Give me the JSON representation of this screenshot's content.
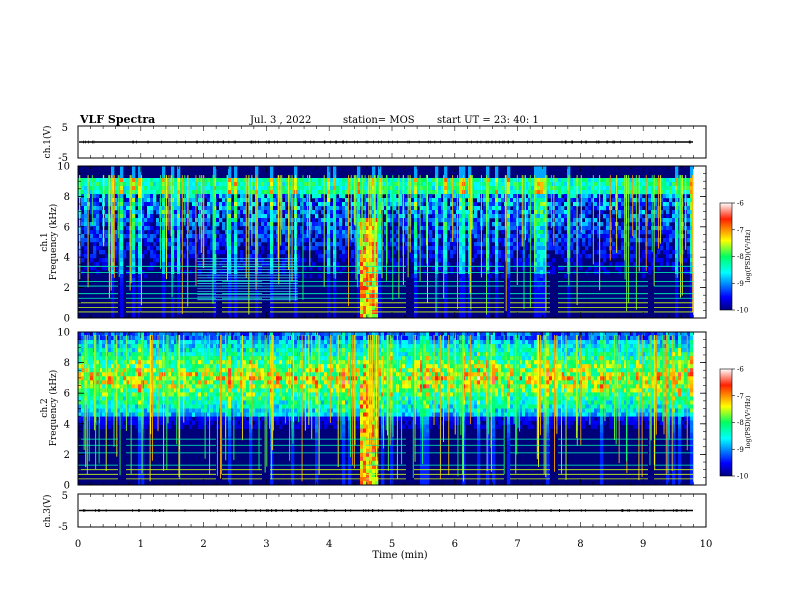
{
  "header": {
    "title": "VLF Spectra",
    "date": "Jul. 3 , 2022",
    "station": "station= MOS",
    "start_ut": "start UT =  23: 40: 1"
  },
  "chart_data": [
    {
      "type": "line",
      "name": "ch1-waveform",
      "ylabel": "ch.1(V)",
      "ylim": [
        -5,
        5
      ],
      "y_ticks": [
        "5",
        "-5"
      ],
      "x_range": [
        0,
        10
      ],
      "level": 0
    },
    {
      "type": "heatmap",
      "name": "ch1-spectrogram",
      "ylabel": "ch.1\nFrequency (kHz)",
      "xlim": [
        0,
        10
      ],
      "ylim": [
        0,
        10
      ],
      "y_ticks": [
        "0",
        "2",
        "4",
        "6",
        "8",
        "10"
      ],
      "colorbar": {
        "range": [
          -10,
          -6
        ],
        "ticks": [
          "-6",
          "-7",
          "-8",
          "-9",
          "-10"
        ],
        "label": "log(PSD)(V²/Hz)"
      },
      "features": {
        "upper_band_khz": [
          8.5,
          9.0
        ],
        "narrowband_lines_khz": [
          0.4,
          0.7,
          1.0,
          1.3,
          1.6,
          2.1,
          2.4,
          3.0,
          3.4
        ],
        "dense_line_interval_min": [
          1.9,
          3.5
        ],
        "strong_burst_min": [
          4.5,
          4.8
        ]
      }
    },
    {
      "type": "heatmap",
      "name": "ch2-spectrogram",
      "ylabel": "ch.2\nFrequency (kHz)",
      "xlim": [
        0,
        10
      ],
      "ylim": [
        0,
        10
      ],
      "y_ticks": [
        "0",
        "2",
        "4",
        "6",
        "8",
        "10"
      ],
      "colorbar": {
        "range": [
          -10,
          -6
        ],
        "ticks": [
          "-6",
          "-7",
          "-8",
          "-9",
          "-10"
        ],
        "label": "log(PSD)(V²/Hz)"
      },
      "features": {
        "intense_band_khz": [
          5.5,
          8.5
        ],
        "peak_khz": 7.0,
        "narrowband_lines_khz": [
          0.4,
          0.7,
          1.0,
          1.3,
          2.1,
          2.6,
          3.0
        ],
        "strong_burst_min": [
          4.5,
          4.8
        ]
      }
    },
    {
      "type": "line",
      "name": "ch3-waveform",
      "ylabel": "ch.3(V)",
      "ylim": [
        -5,
        5
      ],
      "y_ticks": [
        "5",
        "-5"
      ],
      "x_range": [
        0,
        10
      ],
      "level": 0
    }
  ],
  "x_axis": {
    "label": "Time (min)",
    "ticks": [
      "0",
      "1",
      "2",
      "3",
      "4",
      "5",
      "6",
      "7",
      "8",
      "9",
      "10"
    ]
  }
}
